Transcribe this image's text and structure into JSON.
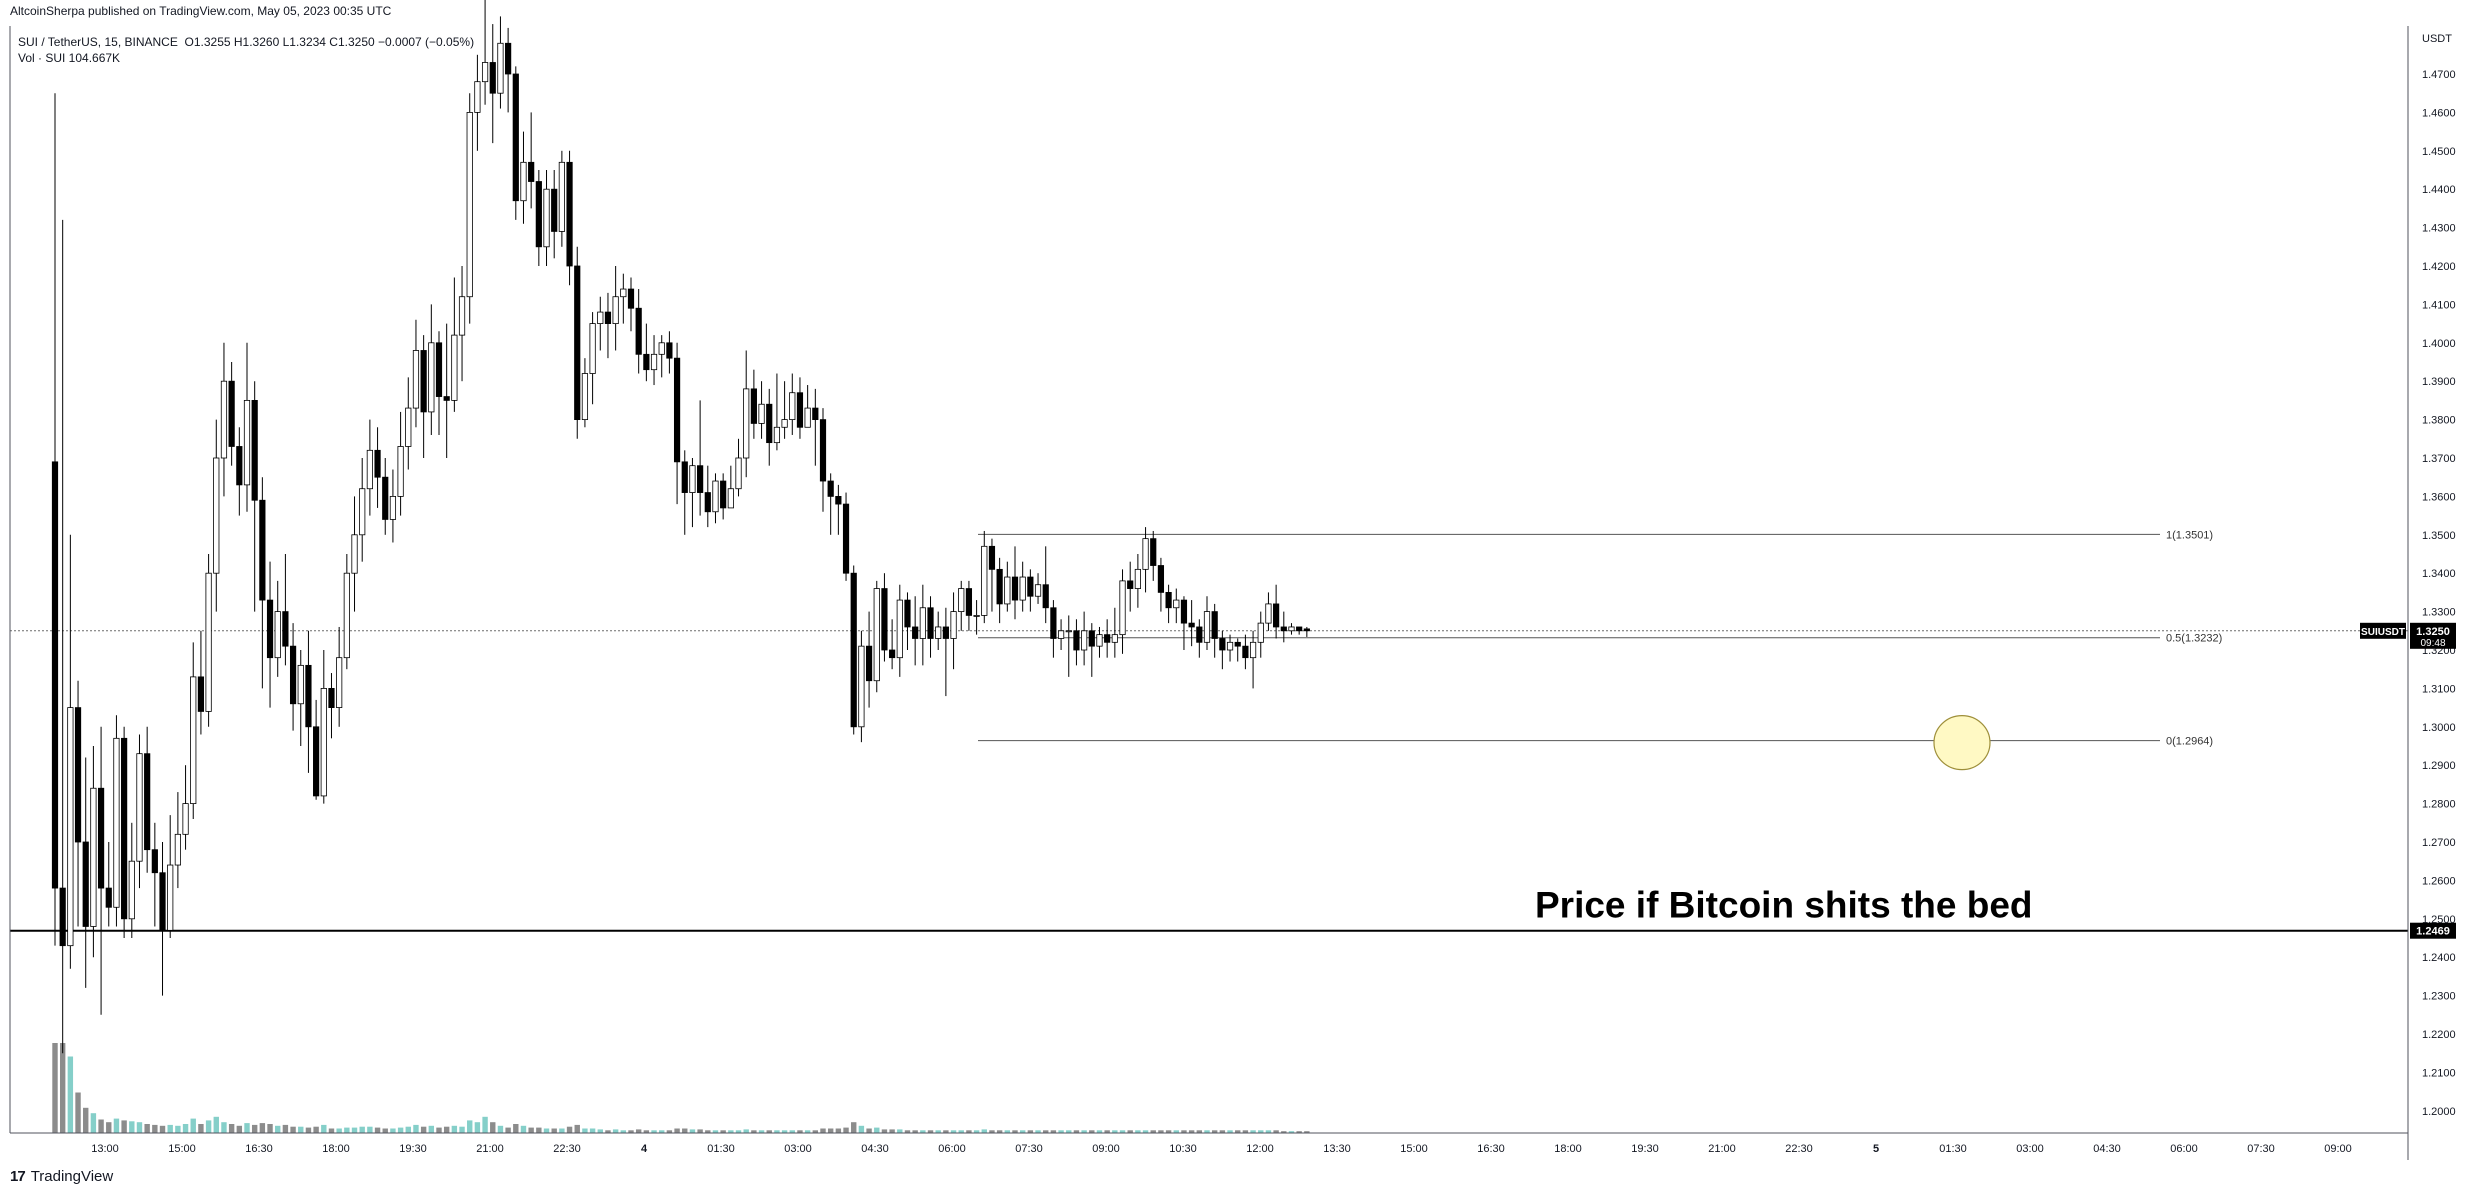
{
  "header": {
    "published": "AltcoinSherpa published on TradingView.com, May 05, 2023 00:35 UTC",
    "symbol": "SUI / TetherUS, 15, BINANCE",
    "ohlc": "O1.3255 H1.3260 L1.3234 C1.3250 −0.0007 (−0.05%)",
    "volume": "Vol · SUI 104.667K"
  },
  "brand": {
    "logo": "17",
    "name": "TradingView"
  },
  "axis": {
    "currency": "USDT",
    "ylim": [
      1.1925,
      1.4825
    ],
    "y_ticks": [
      "1.4700",
      "1.4600",
      "1.4500",
      "1.4400",
      "1.4300",
      "1.4200",
      "1.4100",
      "1.4000",
      "1.3900",
      "1.3800",
      "1.3700",
      "1.3600",
      "1.3500",
      "1.3400",
      "1.3300",
      "1.3200",
      "1.3100",
      "1.3000",
      "1.2900",
      "1.2800",
      "1.2700",
      "1.2600",
      "1.2500",
      "1.2400",
      "1.2300",
      "1.2200",
      "1.2100",
      "1.2000"
    ],
    "x_ticks": [
      "13:00",
      "15:00",
      "16:30",
      "18:00",
      "19:30",
      "21:00",
      "22:30",
      "4",
      "01:30",
      "03:00",
      "04:30",
      "06:00",
      "07:30",
      "09:00",
      "10:30",
      "12:00",
      "13:30",
      "15:00",
      "16:30",
      "18:00",
      "19:30",
      "21:00",
      "22:30",
      "5",
      "01:30",
      "03:00",
      "04:30",
      "06:00",
      "07:30",
      "09:00"
    ],
    "symbol_tag": "SUIUSDT",
    "last_price_tag": "1.3250",
    "countdown_tag": "09:48",
    "support_tag": "1.2469"
  },
  "colors": {
    "up_body": "#ffffff",
    "down_body": "#000000",
    "candle_outline": "#000000",
    "volume_up": "#85cfc9",
    "volume_down": "#8c8c8c",
    "circle_fill": "#fff9c4",
    "circle_stroke": "#9e8f3a"
  },
  "fib_levels": [
    {
      "label": "1(1.3501)",
      "value": 1.3501
    },
    {
      "label": "0.5(1.3232)",
      "value": 1.3232
    },
    {
      "label": "0(1.2964)",
      "value": 1.2964
    }
  ],
  "support_line": {
    "value": 1.2469
  },
  "current_price": {
    "value": 1.325
  },
  "annotation": {
    "text": "Price if Bitcoin shits the bed"
  },
  "chart_data": {
    "type": "candlestick",
    "title": "SUI / TetherUS, 15, BINANCE",
    "ylim": [
      1.1925,
      1.4825
    ],
    "candles": [
      [
        1.369,
        1.258,
        1.465,
        1.243,
        1
      ],
      [
        1.258,
        1.243,
        1.432,
        1.215,
        1
      ],
      [
        1.243,
        1.305,
        1.35,
        1.237,
        0.85
      ],
      [
        1.305,
        1.27,
        1.312,
        1.248,
        0.45
      ],
      [
        1.27,
        1.248,
        1.292,
        1.232,
        0.28
      ],
      [
        1.248,
        1.284,
        1.295,
        1.24,
        0.22
      ],
      [
        1.284,
        1.258,
        1.3,
        1.225,
        0.15
      ],
      [
        1.258,
        1.253,
        1.27,
        1.248,
        0.12
      ],
      [
        1.253,
        1.297,
        1.303,
        1.248,
        0.16
      ],
      [
        1.297,
        1.25,
        1.3,
        1.245,
        0.14
      ],
      [
        1.25,
        1.265,
        1.275,
        1.245,
        0.13
      ],
      [
        1.265,
        1.293,
        1.298,
        1.258,
        0.12
      ],
      [
        1.293,
        1.268,
        1.3,
        1.262,
        0.1
      ],
      [
        1.268,
        1.262,
        1.275,
        1.248,
        0.09
      ],
      [
        1.262,
        1.247,
        1.27,
        1.23,
        0.08
      ],
      [
        1.247,
        1.264,
        1.277,
        1.245,
        0.09
      ],
      [
        1.264,
        1.272,
        1.283,
        1.258,
        0.08
      ],
      [
        1.272,
        1.28,
        1.29,
        1.268,
        0.1
      ],
      [
        1.28,
        1.313,
        1.322,
        1.276,
        0.16
      ],
      [
        1.313,
        1.304,
        1.325,
        1.298,
        0.1
      ],
      [
        1.304,
        1.34,
        1.345,
        1.3,
        0.14
      ],
      [
        1.34,
        1.37,
        1.38,
        1.33,
        0.18
      ],
      [
        1.37,
        1.39,
        1.4,
        1.36,
        0.12
      ],
      [
        1.39,
        1.373,
        1.395,
        1.368,
        0.1
      ],
      [
        1.373,
        1.363,
        1.378,
        1.355,
        0.08
      ],
      [
        1.363,
        1.385,
        1.4,
        1.356,
        0.11
      ],
      [
        1.385,
        1.359,
        1.39,
        1.33,
        0.09
      ],
      [
        1.359,
        1.333,
        1.365,
        1.31,
        0.11
      ],
      [
        1.333,
        1.318,
        1.343,
        1.305,
        0.1
      ],
      [
        1.318,
        1.33,
        1.338,
        1.313,
        0.08
      ],
      [
        1.33,
        1.321,
        1.345,
        1.316,
        0.09
      ],
      [
        1.321,
        1.306,
        1.327,
        1.299,
        0.07
      ],
      [
        1.306,
        1.316,
        1.32,
        1.295,
        0.07
      ],
      [
        1.316,
        1.3,
        1.325,
        1.288,
        0.06
      ],
      [
        1.3,
        1.282,
        1.307,
        1.281,
        0.07
      ],
      [
        1.282,
        1.31,
        1.32,
        1.28,
        0.09
      ],
      [
        1.31,
        1.305,
        1.314,
        1.297,
        0.05
      ],
      [
        1.305,
        1.318,
        1.326,
        1.3,
        0.05
      ],
      [
        1.318,
        1.34,
        1.345,
        1.315,
        0.06
      ],
      [
        1.34,
        1.35,
        1.36,
        1.33,
        0.06
      ],
      [
        1.35,
        1.362,
        1.37,
        1.343,
        0.07
      ],
      [
        1.362,
        1.372,
        1.38,
        1.355,
        0.07
      ],
      [
        1.372,
        1.365,
        1.378,
        1.357,
        0.06
      ],
      [
        1.365,
        1.354,
        1.37,
        1.35,
        0.05
      ],
      [
        1.354,
        1.36,
        1.367,
        1.348,
        0.05
      ],
      [
        1.36,
        1.373,
        1.382,
        1.355,
        0.06
      ],
      [
        1.373,
        1.383,
        1.391,
        1.367,
        0.07
      ],
      [
        1.383,
        1.398,
        1.406,
        1.378,
        0.09
      ],
      [
        1.398,
        1.382,
        1.402,
        1.37,
        0.07
      ],
      [
        1.382,
        1.4,
        1.41,
        1.376,
        0.08
      ],
      [
        1.4,
        1.386,
        1.403,
        1.376,
        0.06
      ],
      [
        1.386,
        1.385,
        1.405,
        1.37,
        0.07
      ],
      [
        1.385,
        1.402,
        1.417,
        1.382,
        0.08
      ],
      [
        1.402,
        1.412,
        1.42,
        1.39,
        0.07
      ],
      [
        1.412,
        1.46,
        1.465,
        1.405,
        0.14
      ],
      [
        1.46,
        1.468,
        1.475,
        1.45,
        0.12
      ],
      [
        1.468,
        1.473,
        1.49,
        1.462,
        0.18
      ],
      [
        1.473,
        1.465,
        1.483,
        1.452,
        0.12
      ],
      [
        1.465,
        1.478,
        1.485,
        1.461,
        0.08
      ],
      [
        1.478,
        1.47,
        1.482,
        1.46,
        0.06
      ],
      [
        1.47,
        1.437,
        1.472,
        1.432,
        0.1
      ],
      [
        1.437,
        1.447,
        1.455,
        1.431,
        0.08
      ],
      [
        1.447,
        1.442,
        1.46,
        1.435,
        0.06
      ],
      [
        1.442,
        1.425,
        1.445,
        1.42,
        0.06
      ],
      [
        1.425,
        1.44,
        1.445,
        1.42,
        0.05
      ],
      [
        1.44,
        1.429,
        1.445,
        1.422,
        0.05
      ],
      [
        1.429,
        1.447,
        1.45,
        1.425,
        0.05
      ],
      [
        1.447,
        1.42,
        1.45,
        1.415,
        0.07
      ],
      [
        1.42,
        1.38,
        1.425,
        1.375,
        0.09
      ],
      [
        1.38,
        1.392,
        1.396,
        1.378,
        0.05
      ],
      [
        1.392,
        1.405,
        1.408,
        1.384,
        0.05
      ],
      [
        1.405,
        1.408,
        1.412,
        1.398,
        0.04
      ],
      [
        1.408,
        1.405,
        1.413,
        1.396,
        0.03
      ],
      [
        1.405,
        1.412,
        1.42,
        1.398,
        0.04
      ],
      [
        1.412,
        1.414,
        1.418,
        1.405,
        0.03
      ],
      [
        1.414,
        1.409,
        1.417,
        1.403,
        0.03
      ],
      [
        1.409,
        1.397,
        1.414,
        1.392,
        0.04
      ],
      [
        1.397,
        1.393,
        1.405,
        1.39,
        0.03
      ],
      [
        1.393,
        1.397,
        1.402,
        1.389,
        0.03
      ],
      [
        1.397,
        1.4,
        1.402,
        1.391,
        0.03
      ],
      [
        1.4,
        1.396,
        1.403,
        1.392,
        0.03
      ],
      [
        1.396,
        1.369,
        1.4,
        1.358,
        0.05
      ],
      [
        1.369,
        1.361,
        1.372,
        1.35,
        0.05
      ],
      [
        1.361,
        1.368,
        1.37,
        1.352,
        0.04
      ],
      [
        1.368,
        1.361,
        1.385,
        1.355,
        0.04
      ],
      [
        1.361,
        1.356,
        1.368,
        1.352,
        0.03
      ],
      [
        1.356,
        1.364,
        1.366,
        1.353,
        0.03
      ],
      [
        1.364,
        1.357,
        1.366,
        1.354,
        0.03
      ],
      [
        1.357,
        1.362,
        1.368,
        1.357,
        0.03
      ],
      [
        1.362,
        1.37,
        1.375,
        1.36,
        0.03
      ],
      [
        1.37,
        1.388,
        1.398,
        1.365,
        0.04
      ],
      [
        1.388,
        1.379,
        1.393,
        1.375,
        0.03
      ],
      [
        1.379,
        1.384,
        1.39,
        1.375,
        0.03
      ],
      [
        1.384,
        1.374,
        1.388,
        1.368,
        0.03
      ],
      [
        1.374,
        1.378,
        1.392,
        1.372,
        0.03
      ],
      [
        1.378,
        1.38,
        1.39,
        1.375,
        0.03
      ],
      [
        1.38,
        1.387,
        1.392,
        1.376,
        0.03
      ],
      [
        1.387,
        1.378,
        1.391,
        1.375,
        0.03
      ],
      [
        1.378,
        1.383,
        1.389,
        1.378,
        0.03
      ],
      [
        1.383,
        1.38,
        1.388,
        1.368,
        0.03
      ],
      [
        1.38,
        1.364,
        1.383,
        1.356,
        0.05
      ],
      [
        1.364,
        1.36,
        1.366,
        1.35,
        0.05
      ],
      [
        1.36,
        1.358,
        1.363,
        1.35,
        0.05
      ],
      [
        1.358,
        1.34,
        1.361,
        1.338,
        0.06
      ],
      [
        1.34,
        1.3,
        1.342,
        1.298,
        0.12
      ],
      [
        1.3,
        1.321,
        1.325,
        1.296,
        0.08
      ],
      [
        1.321,
        1.312,
        1.33,
        1.305,
        0.05
      ],
      [
        1.312,
        1.336,
        1.338,
        1.309,
        0.06
      ],
      [
        1.336,
        1.32,
        1.34,
        1.317,
        0.04
      ],
      [
        1.32,
        1.318,
        1.328,
        1.315,
        0.04
      ],
      [
        1.318,
        1.333,
        1.337,
        1.313,
        0.04
      ],
      [
        1.333,
        1.326,
        1.335,
        1.32,
        0.03
      ],
      [
        1.326,
        1.323,
        1.334,
        1.316,
        0.03
      ],
      [
        1.323,
        1.331,
        1.337,
        1.316,
        0.03
      ],
      [
        1.331,
        1.323,
        1.334,
        1.318,
        0.03
      ],
      [
        1.323,
        1.326,
        1.33,
        1.32,
        0.03
      ],
      [
        1.326,
        1.323,
        1.331,
        1.308,
        0.03
      ],
      [
        1.323,
        1.33,
        1.335,
        1.315,
        0.03
      ],
      [
        1.33,
        1.336,
        1.338,
        1.325,
        0.03
      ],
      [
        1.336,
        1.329,
        1.338,
        1.325,
        0.03
      ],
      [
        1.329,
        1.329,
        1.333,
        1.324,
        0.03
      ],
      [
        1.329,
        1.347,
        1.351,
        1.327,
        0.04
      ],
      [
        1.347,
        1.341,
        1.349,
        1.33,
        0.03
      ],
      [
        1.341,
        1.332,
        1.344,
        1.327,
        0.03
      ],
      [
        1.332,
        1.339,
        1.343,
        1.33,
        0.03
      ],
      [
        1.339,
        1.333,
        1.347,
        1.328,
        0.03
      ],
      [
        1.333,
        1.339,
        1.343,
        1.33,
        0.03
      ],
      [
        1.339,
        1.334,
        1.341,
        1.33,
        0.03
      ],
      [
        1.334,
        1.337,
        1.34,
        1.332,
        0.03
      ],
      [
        1.337,
        1.331,
        1.347,
        1.327,
        0.03
      ],
      [
        1.331,
        1.323,
        1.333,
        1.318,
        0.03
      ],
      [
        1.323,
        1.325,
        1.328,
        1.32,
        0.03
      ],
      [
        1.325,
        1.325,
        1.329,
        1.313,
        0.03
      ],
      [
        1.325,
        1.32,
        1.328,
        1.316,
        0.03
      ],
      [
        1.32,
        1.325,
        1.33,
        1.316,
        0.03
      ],
      [
        1.325,
        1.321,
        1.327,
        1.313,
        0.03
      ],
      [
        1.321,
        1.324,
        1.326,
        1.318,
        0.03
      ],
      [
        1.324,
        1.322,
        1.328,
        1.318,
        0.03
      ],
      [
        1.322,
        1.324,
        1.331,
        1.318,
        0.03
      ],
      [
        1.324,
        1.338,
        1.341,
        1.319,
        0.03
      ],
      [
        1.338,
        1.336,
        1.343,
        1.33,
        0.03
      ],
      [
        1.336,
        1.341,
        1.345,
        1.331,
        0.03
      ],
      [
        1.341,
        1.349,
        1.352,
        1.335,
        0.03
      ],
      [
        1.349,
        1.342,
        1.351,
        1.338,
        0.03
      ],
      [
        1.342,
        1.335,
        1.344,
        1.33,
        0.03
      ],
      [
        1.335,
        1.331,
        1.337,
        1.327,
        0.03
      ],
      [
        1.331,
        1.333,
        1.336,
        1.327,
        0.03
      ],
      [
        1.333,
        1.327,
        1.334,
        1.32,
        0.03
      ],
      [
        1.327,
        1.326,
        1.333,
        1.321,
        0.03
      ],
      [
        1.326,
        1.322,
        1.328,
        1.318,
        0.03
      ],
      [
        1.322,
        1.33,
        1.334,
        1.32,
        0.03
      ],
      [
        1.33,
        1.323,
        1.332,
        1.318,
        0.03
      ],
      [
        1.323,
        1.32,
        1.325,
        1.315,
        0.03
      ],
      [
        1.32,
        1.322,
        1.324,
        1.317,
        0.03
      ],
      [
        1.322,
        1.321,
        1.323,
        1.317,
        0.03
      ],
      [
        1.321,
        1.318,
        1.324,
        1.315,
        0.03
      ],
      [
        1.318,
        1.322,
        1.325,
        1.31,
        0.03
      ],
      [
        1.322,
        1.327,
        1.33,
        1.318,
        0.03
      ],
      [
        1.327,
        1.332,
        1.335,
        1.325,
        0.03
      ],
      [
        1.332,
        1.326,
        1.337,
        1.323,
        0.03
      ],
      [
        1.326,
        1.325,
        1.33,
        1.322,
        0.02
      ],
      [
        1.325,
        1.326,
        1.327,
        1.324,
        0.02
      ],
      [
        1.326,
        1.325,
        1.326,
        1.324,
        0.02
      ],
      [
        1.3255,
        1.325,
        1.326,
        1.3234,
        0.02
      ]
    ]
  }
}
